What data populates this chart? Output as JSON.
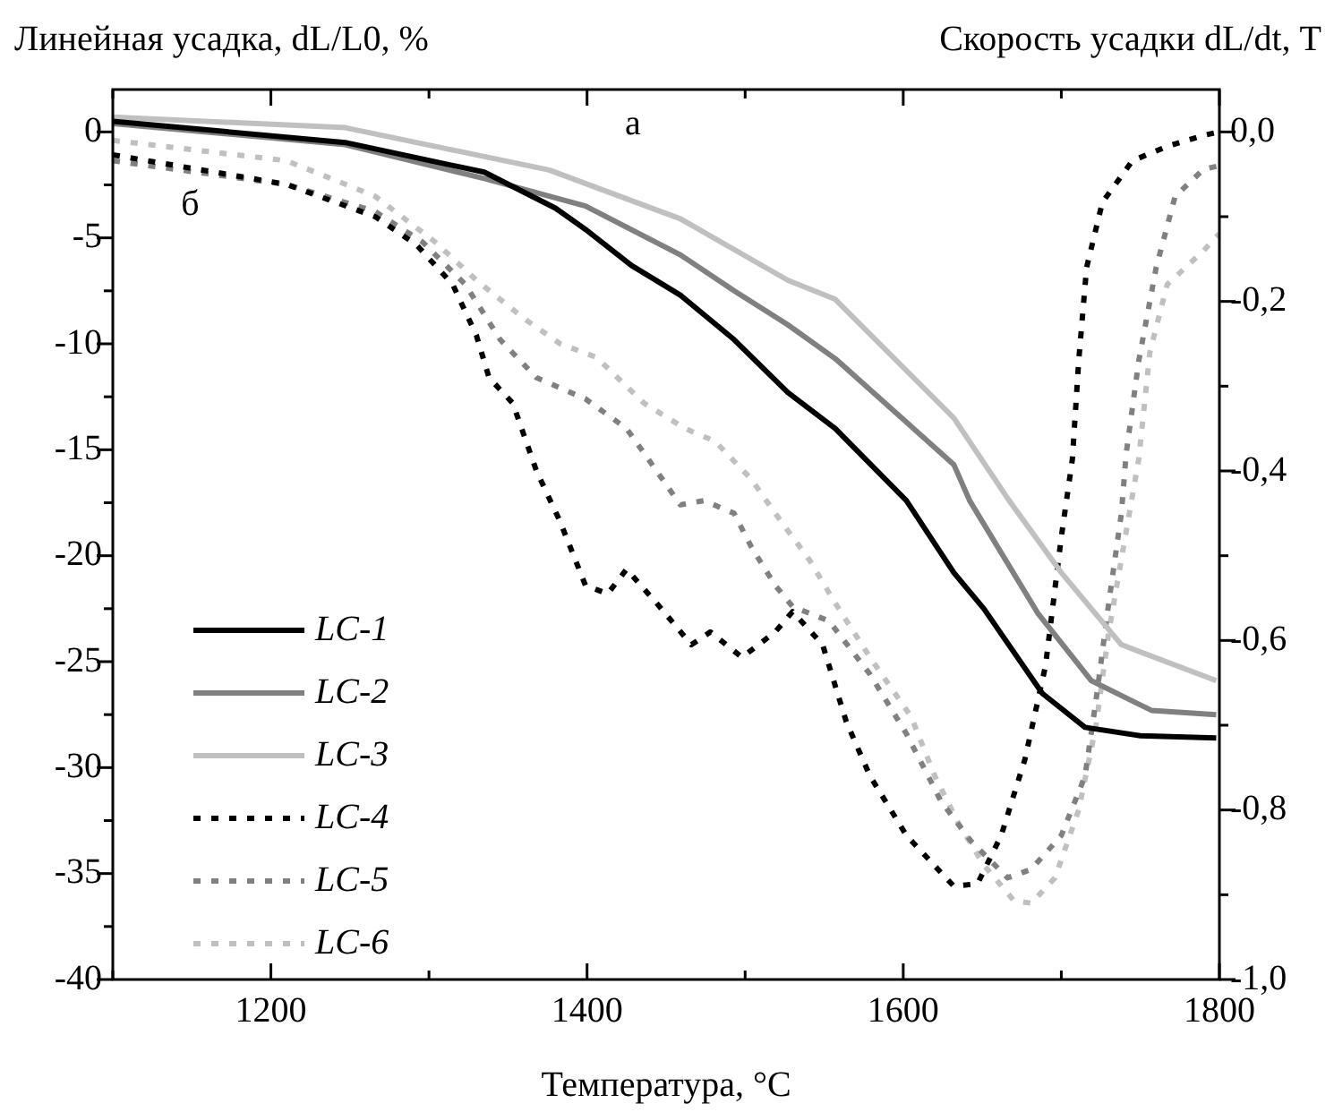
{
  "chart_data": {
    "type": "line",
    "ylabel": "Линейная усадка, dL/L0, %",
    "y2label": "Скорость усадки dL/dt, Т",
    "xlabel": "Температура, °С",
    "xlim": [
      1100,
      1800
    ],
    "xticks": [
      {
        "value": 1100,
        "label": null
      },
      1200,
      {
        "value": 1300,
        "label": null
      },
      1400,
      {
        "value": 1500,
        "label": null
      },
      1600,
      {
        "value": 1700,
        "label": null
      },
      1800
    ],
    "ylim": [
      -40,
      2
    ],
    "yticks": [
      0,
      {
        "value": -2.5,
        "label": null
      },
      -5,
      {
        "value": -7.5,
        "label": null
      },
      -10,
      {
        "value": -12.5,
        "label": null
      },
      -15,
      {
        "value": -17.5,
        "label": null
      },
      -20,
      {
        "value": -22.5,
        "label": null
      },
      -25,
      {
        "value": -27.5,
        "label": null
      },
      -30,
      {
        "value": -32.5,
        "label": null
      },
      -35,
      {
        "value": -37.5,
        "label": null
      },
      -40
    ],
    "y2lim": [
      -1,
      0.05
    ],
    "y2ticks": [
      {
        "value": 0,
        "label": "0,0"
      },
      {
        "value": -0.1,
        "label": null
      },
      {
        "value": -0.2,
        "label": "-0,2"
      },
      {
        "value": -0.3,
        "label": null
      },
      {
        "value": -0.4,
        "label": "-0,4"
      },
      {
        "value": -0.5,
        "label": null
      },
      {
        "value": -0.6,
        "label": "-0,6"
      },
      {
        "value": -0.7,
        "label": null
      },
      {
        "value": -0.8,
        "label": "-0,8"
      },
      {
        "value": -0.9,
        "label": null
      },
      {
        "value": -1,
        "label": "-1,0"
      }
    ],
    "legend": "bottom left",
    "marker": "none",
    "annotations": [
      "а",
      "б"
    ],
    "series": [
      {
        "name": "LC-1",
        "color": "#000000",
        "line_style": "solid",
        "x": [
          1100,
          1247,
          1335,
          1380,
          1399,
          1428,
          1459,
          1493,
          1527,
          1557,
          1602,
          1632,
          1651,
          1688,
          1715,
          1750,
          1798
        ],
        "values": [
          0.5,
          -0.5,
          -1.9,
          -3.6,
          -4.6,
          -6.3,
          -7.7,
          -9.8,
          -12.3,
          -14.0,
          -17.4,
          -20.8,
          -22.5,
          -26.5,
          -28.1,
          -28.5,
          -28.6
        ]
      },
      {
        "name": "LC-2",
        "color": "#808080",
        "line_style": "solid",
        "x": [
          1100,
          1247,
          1335,
          1399,
          1459,
          1493,
          1527,
          1557,
          1632,
          1642,
          1685,
          1719,
          1757,
          1798
        ],
        "values": [
          0.4,
          -0.6,
          -2.2,
          -3.5,
          -5.8,
          -7.5,
          -9.1,
          -10.7,
          -15.7,
          -17.4,
          -22.7,
          -25.9,
          -27.3,
          -27.5
        ]
      },
      {
        "name": "LC-3",
        "color": "#c0c0c0",
        "line_style": "solid",
        "x": [
          1100,
          1247,
          1376,
          1459,
          1527,
          1557,
          1632,
          1667,
          1700,
          1738,
          1798
        ],
        "values": [
          0.7,
          0.2,
          -1.8,
          -4.1,
          -7.0,
          -7.9,
          -13.5,
          -17.4,
          -20.8,
          -24.2,
          -25.9
        ]
      },
      {
        "name": "LC-4",
        "color": "#000000",
        "line_style": "dotted",
        "axis": "y2",
        "x": [
          1100,
          1210,
          1266,
          1292,
          1315,
          1330,
          1338,
          1353,
          1368,
          1383,
          1399,
          1413,
          1425,
          1444,
          1466,
          1478,
          1498,
          1519,
          1530,
          1549,
          1564,
          1579,
          1602,
          1632,
          1647,
          1662,
          1677,
          1690,
          1700,
          1707,
          1711,
          1716,
          1726,
          1745,
          1767,
          1790,
          1800
        ],
        "values": [
          -0.027,
          -0.062,
          -0.1,
          -0.133,
          -0.18,
          -0.24,
          -0.29,
          -0.32,
          -0.4,
          -0.46,
          -0.535,
          -0.545,
          -0.516,
          -0.556,
          -0.605,
          -0.59,
          -0.62,
          -0.59,
          -0.566,
          -0.605,
          -0.696,
          -0.76,
          -0.83,
          -0.89,
          -0.887,
          -0.83,
          -0.74,
          -0.63,
          -0.478,
          -0.386,
          -0.27,
          -0.16,
          -0.083,
          -0.034,
          -0.017,
          -0.004,
          0
        ]
      },
      {
        "name": "LC-5",
        "color": "#808080",
        "line_style": "dotted",
        "axis": "y2",
        "x": [
          1100,
          1210,
          1266,
          1296,
          1323,
          1345,
          1368,
          1399,
          1425,
          1444,
          1459,
          1474,
          1493,
          1504,
          1519,
          1530,
          1553,
          1579,
          1602,
          1624,
          1643,
          1666,
          1681,
          1700,
          1715,
          1722,
          1730,
          1738,
          1741,
          1749,
          1760,
          1772,
          1790,
          1800
        ],
        "values": [
          -0.034,
          -0.062,
          -0.094,
          -0.13,
          -0.18,
          -0.245,
          -0.29,
          -0.315,
          -0.35,
          -0.4,
          -0.44,
          -0.435,
          -0.45,
          -0.49,
          -0.535,
          -0.56,
          -0.577,
          -0.64,
          -0.71,
          -0.79,
          -0.837,
          -0.88,
          -0.87,
          -0.83,
          -0.76,
          -0.67,
          -0.556,
          -0.45,
          -0.38,
          -0.27,
          -0.16,
          -0.076,
          -0.044,
          -0.04
        ]
      },
      {
        "name": "LC-6",
        "color": "#c0c0c0",
        "line_style": "dotted",
        "axis": "y2",
        "x": [
          1100,
          1210,
          1266,
          1304,
          1330,
          1360,
          1383,
          1406,
          1436,
          1462,
          1481,
          1504,
          1519,
          1541,
          1557,
          1579,
          1605,
          1620,
          1635,
          1651,
          1670,
          1681,
          1696,
          1711,
          1722,
          1730,
          1749,
          1756,
          1767,
          1790,
          1800
        ],
        "values": [
          -0.01,
          -0.034,
          -0.076,
          -0.13,
          -0.175,
          -0.22,
          -0.25,
          -0.266,
          -0.32,
          -0.35,
          -0.365,
          -0.41,
          -0.45,
          -0.506,
          -0.556,
          -0.62,
          -0.69,
          -0.76,
          -0.816,
          -0.865,
          -0.907,
          -0.91,
          -0.88,
          -0.8,
          -0.7,
          -0.59,
          -0.386,
          -0.26,
          -0.18,
          -0.14,
          -0.12
        ]
      }
    ]
  }
}
